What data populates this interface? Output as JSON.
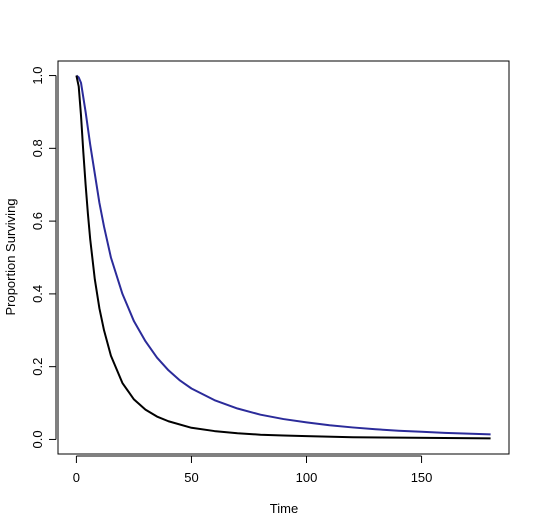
{
  "chart_data": {
    "type": "line",
    "title": "",
    "xlabel": "Time",
    "ylabel": "Proportion Surviving",
    "xlim": [
      -8,
      188
    ],
    "ylim": [
      -0.04,
      1.04
    ],
    "x_ticks": [
      0,
      50,
      100,
      150
    ],
    "y_ticks": [
      0.0,
      0.2,
      0.4,
      0.6,
      0.8,
      1.0
    ],
    "x_tick_labels": [
      "0",
      "50",
      "100",
      "150"
    ],
    "y_tick_labels": [
      "0.0",
      "0.2",
      "0.4",
      "0.6",
      "0.8",
      "1.0"
    ],
    "grid": false,
    "legend": "none",
    "series": [
      {
        "color": "#2b2b9a",
        "x": [
          0,
          1,
          2,
          4,
          6,
          8,
          10,
          12,
          15,
          20,
          25,
          30,
          35,
          40,
          45,
          50,
          60,
          70,
          80,
          90,
          100,
          110,
          120,
          130,
          140,
          150,
          160,
          170,
          180
        ],
        "y": [
          1.0,
          0.995,
          0.98,
          0.9,
          0.81,
          0.73,
          0.65,
          0.585,
          0.5,
          0.4,
          0.325,
          0.27,
          0.225,
          0.19,
          0.162,
          0.14,
          0.108,
          0.085,
          0.068,
          0.056,
          0.047,
          0.039,
          0.033,
          0.028,
          0.024,
          0.021,
          0.018,
          0.016,
          0.014
        ]
      },
      {
        "color": "#000000",
        "x": [
          0,
          1,
          2,
          3,
          4,
          5,
          6,
          8,
          10,
          12,
          15,
          20,
          25,
          30,
          35,
          40,
          50,
          60,
          70,
          80,
          90,
          100,
          120,
          140,
          160,
          180
        ],
        "y": [
          1.0,
          0.97,
          0.89,
          0.79,
          0.7,
          0.62,
          0.55,
          0.44,
          0.36,
          0.3,
          0.23,
          0.155,
          0.11,
          0.082,
          0.063,
          0.05,
          0.032,
          0.023,
          0.017,
          0.013,
          0.011,
          0.009,
          0.006,
          0.005,
          0.004,
          0.003
        ]
      }
    ]
  }
}
